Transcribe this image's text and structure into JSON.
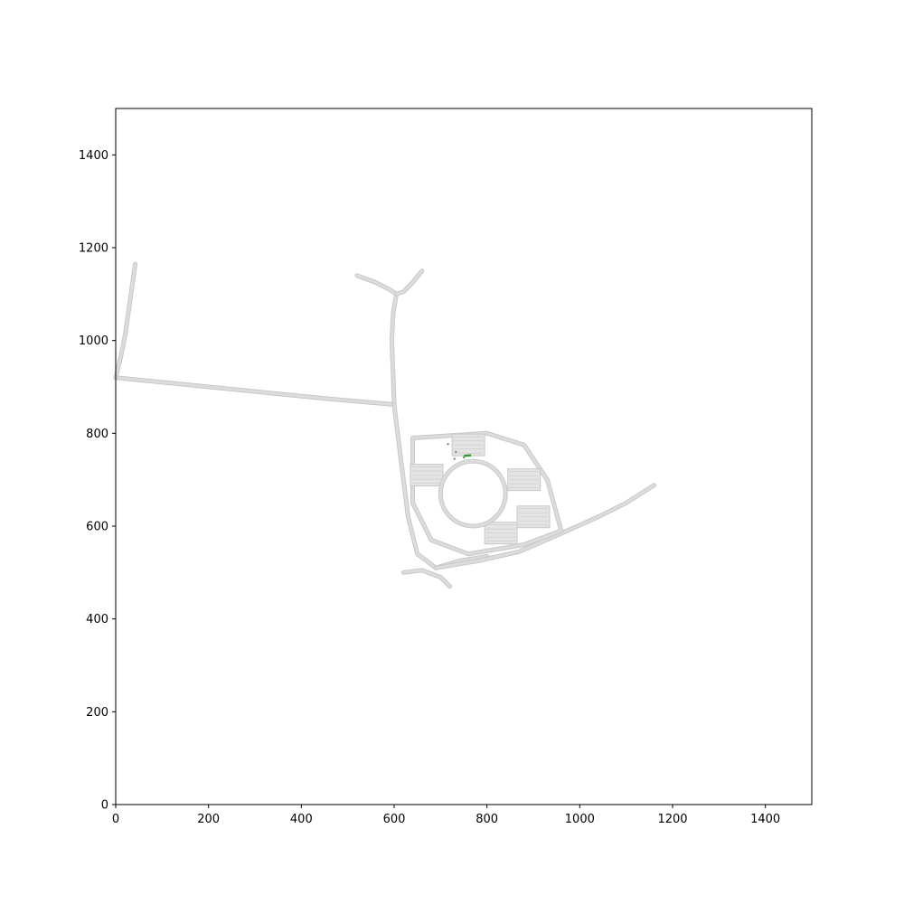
{
  "chart_data": {
    "type": "map",
    "title": "",
    "xlabel": "",
    "ylabel": "",
    "xlim": [
      0,
      1500
    ],
    "ylim": [
      0,
      1500
    ],
    "grid": false,
    "x_ticks": [
      0,
      200,
      400,
      600,
      800,
      1000,
      1200,
      1400
    ],
    "y_ticks": [
      0,
      200,
      400,
      600,
      800,
      1000,
      1200,
      1400
    ],
    "colors": {
      "road": "#dcdcdc",
      "road_edge": "#c8c8c8",
      "parking": "#e4e4e4",
      "agent": "#2a9d2a",
      "object": "#888888"
    },
    "roads": [
      {
        "name": "west-road",
        "points": [
          [
            0,
            920
          ],
          [
            150,
            905
          ],
          [
            300,
            890
          ],
          [
            450,
            875
          ],
          [
            600,
            862
          ]
        ]
      },
      {
        "name": "west-road-north-branch",
        "points": [
          [
            0,
            920
          ],
          [
            10,
            960
          ],
          [
            20,
            1010
          ],
          [
            30,
            1080
          ],
          [
            42,
            1165
          ]
        ]
      },
      {
        "name": "main-north-south-road",
        "points": [
          [
            600,
            862
          ],
          [
            598,
            920
          ],
          [
            595,
            1000
          ],
          [
            598,
            1060
          ],
          [
            605,
            1100
          ]
        ]
      },
      {
        "name": "main-road-south",
        "points": [
          [
            600,
            862
          ],
          [
            610,
            780
          ],
          [
            620,
            700
          ],
          [
            630,
            620
          ],
          [
            650,
            540
          ],
          [
            690,
            510
          ]
        ]
      },
      {
        "name": "north-roundabout-west",
        "points": [
          [
            520,
            1140
          ],
          [
            560,
            1125
          ],
          [
            590,
            1110
          ],
          [
            605,
            1100
          ]
        ]
      },
      {
        "name": "north-roundabout-east",
        "points": [
          [
            660,
            1150
          ],
          [
            640,
            1125
          ],
          [
            620,
            1105
          ],
          [
            605,
            1100
          ]
        ]
      },
      {
        "name": "south-roundabout-arm",
        "points": [
          [
            620,
            500
          ],
          [
            660,
            505
          ],
          [
            700,
            490
          ],
          [
            720,
            470
          ]
        ]
      },
      {
        "name": "south-connector-east",
        "points": [
          [
            690,
            510
          ],
          [
            740,
            525
          ],
          [
            800,
            535
          ]
        ]
      },
      {
        "name": "southeast-road",
        "points": [
          [
            690,
            510
          ],
          [
            780,
            525
          ],
          [
            870,
            545
          ],
          [
            950,
            580
          ],
          [
            1040,
            620
          ],
          [
            1100,
            650
          ],
          [
            1160,
            688
          ]
        ]
      },
      {
        "name": "campus-ring-outer",
        "points": [
          [
            640,
            790
          ],
          [
            800,
            800
          ],
          [
            880,
            775
          ],
          [
            930,
            700
          ],
          [
            960,
            590
          ],
          [
            880,
            560
          ],
          [
            760,
            540
          ],
          [
            680,
            570
          ],
          [
            640,
            650
          ],
          [
            640,
            790
          ]
        ]
      }
    ],
    "campus_circle": {
      "center": [
        770,
        670
      ],
      "radius": 70
    },
    "parking_lots": [
      {
        "name": "lot-west",
        "center": [
          670,
          710
        ]
      },
      {
        "name": "lot-north",
        "center": [
          760,
          775
        ]
      },
      {
        "name": "lot-east",
        "center": [
          880,
          700
        ]
      },
      {
        "name": "lot-southeast",
        "center": [
          900,
          620
        ]
      },
      {
        "name": "lot-south",
        "center": [
          830,
          585
        ]
      }
    ],
    "agents": [
      {
        "name": "ego-vehicle",
        "x": 758,
        "y": 752,
        "heading_deg": 5
      }
    ],
    "objects": [
      {
        "x": 733,
        "y": 760
      },
      {
        "x": 750,
        "y": 748
      },
      {
        "x": 716,
        "y": 777
      },
      {
        "x": 730,
        "y": 745
      }
    ]
  }
}
